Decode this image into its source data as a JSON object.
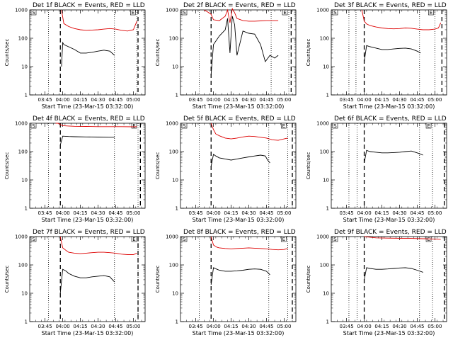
{
  "panel_layout": {
    "cols": 3,
    "rows": 3
  },
  "panels": [
    {
      "title": "Det 1f BLACK = Events, RED = LLD",
      "xlabel": "Start Time (23-Mar-15 03:32:00)",
      "ylabel": "Counts/sec",
      "s_label": "S",
      "e_label": "E"
    },
    {
      "title": "Det 2f BLACK = Events, RED = LLD",
      "xlabel": "Start Time (23-Mar-15 03:32:00)",
      "ylabel": "Counts/sec",
      "s_label": "S",
      "e_label": "E"
    },
    {
      "title": "Det 3f BLACK = Events, RED = LLD",
      "xlabel": "Start Time (23-Mar-15 03:32:00)",
      "ylabel": "Counts/sec",
      "s_label": "S",
      "e_label": "E"
    },
    {
      "title": "Det 4f BLACK = Events, RED = LLD",
      "xlabel": "Start Time (23-Mar-15 03:32:00)",
      "ylabel": "Counts/sec",
      "s_label": "S",
      "e_label": "E"
    },
    {
      "title": "Det 5f BLACK = Events, RED = LLD",
      "xlabel": "Start Time (23-Mar-15 03:32:00)",
      "ylabel": "Counts/sec",
      "s_label": "S",
      "e_label": "E"
    },
    {
      "title": "Det 6f BLACK = Events, RED = LLD",
      "xlabel": "Start Time (23-Mar-15 03:32:00)",
      "ylabel": "Counts/sec",
      "s_label": "S",
      "e_label": "E"
    },
    {
      "title": "Det 7f BLACK = Events, RED = LLD",
      "xlabel": "Start Time (23-Mar-15 03:32:00)",
      "ylabel": "Counts/sec",
      "s_label": "S",
      "e_label": "E"
    },
    {
      "title": "Det 8f BLACK = Events, RED = LLD",
      "xlabel": "Start Time (23-Mar-15 03:32:00)",
      "ylabel": "Counts/sec",
      "s_label": "S",
      "e_label": "E"
    },
    {
      "title": "Det 9f BLACK = Events, RED = LLD",
      "xlabel": "Start Time (23-Mar-15 03:32:00)",
      "ylabel": "Counts/sec",
      "s_label": "S",
      "e_label": "E"
    }
  ],
  "colors": {
    "events": "#000000",
    "lld": "#dd0000",
    "axes": "#000000"
  },
  "chart_data": [
    {
      "type": "line",
      "x_scale": "time",
      "y_scale": "log",
      "ylim": [
        1,
        1000
      ],
      "xlim": [
        "03:32",
        "05:10"
      ],
      "xticks": [
        "03:45",
        "04:00",
        "04:15",
        "04:30",
        "04:45",
        "05:00"
      ],
      "yticks": [
        "1",
        "10",
        "100",
        "1000"
      ],
      "markers": {
        "dotted": [
          "03:48",
          "04:44",
          "05:03"
        ],
        "dashed": [
          "03:58",
          "05:04"
        ]
      },
      "series": [
        {
          "name": "LLD",
          "x": [
            "03:59",
            "04:01",
            "04:05",
            "04:10",
            "04:15",
            "04:20",
            "04:25",
            "04:30",
            "04:35",
            "04:40",
            "04:45",
            "04:50",
            "04:55",
            "05:00",
            "05:03"
          ],
          "y": [
            1000,
            330,
            260,
            220,
            200,
            190,
            195,
            200,
            210,
            220,
            210,
            190,
            180,
            200,
            400
          ]
        },
        {
          "name": "Events",
          "x": [
            "03:59",
            "04:00",
            "04:01",
            "04:05",
            "04:10",
            "04:15",
            "04:20",
            "04:25",
            "04:30",
            "04:35",
            "04:40",
            "04:44"
          ],
          "y": [
            10,
            70,
            60,
            50,
            40,
            30,
            30,
            32,
            35,
            38,
            35,
            25
          ]
        }
      ]
    },
    {
      "type": "line",
      "x_scale": "time",
      "y_scale": "log",
      "ylim": [
        1,
        1000
      ],
      "xlim": [
        "03:32",
        "05:10"
      ],
      "xticks": [
        "03:45",
        "04:00",
        "04:15",
        "04:30",
        "04:45",
        "05:00"
      ],
      "yticks": [
        "1",
        "10",
        "100",
        "1000"
      ],
      "markers": {
        "dotted": [
          "03:48",
          "04:49",
          "05:04"
        ],
        "dashed": [
          "03:58",
          "05:06"
        ]
      },
      "series": [
        {
          "name": "LLD",
          "x": [
            "03:52",
            "03:54",
            "03:56",
            "03:58",
            "04:00",
            "04:05",
            "04:10",
            "04:12",
            "04:14",
            "04:16",
            "04:18",
            "04:20",
            "04:25",
            "04:30",
            "04:35",
            "04:40",
            "04:45",
            "04:50",
            "04:55"
          ],
          "y": [
            1000,
            900,
            800,
            700,
            450,
            420,
            600,
            1000,
            350,
            1100,
            800,
            500,
            420,
            400,
            400,
            410,
            420,
            420,
            420
          ]
        },
        {
          "name": "Events",
          "x": [
            "03:58",
            "04:00",
            "04:05",
            "04:10",
            "04:12",
            "04:14",
            "04:16",
            "04:18",
            "04:20",
            "04:25",
            "04:30",
            "04:35",
            "04:40",
            "04:44",
            "04:48",
            "04:52",
            "04:55"
          ],
          "y": [
            5,
            60,
            120,
            200,
            500,
            30,
            600,
            300,
            25,
            180,
            150,
            140,
            60,
            15,
            25,
            20,
            25
          ]
        }
      ]
    },
    {
      "type": "line",
      "x_scale": "time",
      "y_scale": "log",
      "ylim": [
        1,
        1000
      ],
      "xlim": [
        "03:32",
        "05:10"
      ],
      "xticks": [
        "03:45",
        "04:00",
        "04:15",
        "04:30",
        "04:45",
        "05:00"
      ],
      "yticks": [
        "1",
        "10",
        "100",
        "1000"
      ],
      "markers": {
        "dotted": [
          "03:47",
          "03:53",
          "04:47",
          "05:00"
        ],
        "dashed": [
          "04:00",
          "05:06"
        ]
      },
      "series": [
        {
          "name": "LLD",
          "x": [
            "03:58",
            "04:00",
            "04:02",
            "04:05",
            "04:10",
            "04:15",
            "04:20",
            "04:25",
            "04:30",
            "04:35",
            "04:40",
            "04:45",
            "04:50",
            "04:55",
            "05:00",
            "05:03",
            "05:05"
          ],
          "y": [
            1000,
            400,
            320,
            280,
            250,
            230,
            220,
            215,
            220,
            230,
            225,
            210,
            200,
            200,
            210,
            230,
            350
          ]
        },
        {
          "name": "Events",
          "x": [
            "04:00",
            "04:02",
            "04:05",
            "04:10",
            "04:15",
            "04:20",
            "04:25",
            "04:30",
            "04:35",
            "04:40",
            "04:45",
            "04:48"
          ],
          "y": [
            15,
            55,
            50,
            45,
            40,
            40,
            42,
            44,
            45,
            42,
            35,
            30
          ]
        }
      ]
    },
    {
      "type": "line",
      "x_scale": "time",
      "y_scale": "log",
      "ylim": [
        1,
        1000
      ],
      "xlim": [
        "03:32",
        "05:10"
      ],
      "xticks": [
        "03:45",
        "04:00",
        "04:15",
        "04:30",
        "04:45",
        "05:00"
      ],
      "yticks": [
        "1",
        "10",
        "100",
        "1000"
      ],
      "markers": {
        "dotted": [
          "03:48",
          "04:44",
          "05:04"
        ],
        "dashed": [
          "03:58",
          "05:06"
        ]
      },
      "series": [
        {
          "name": "LLD",
          "x": [
            "03:54",
            "03:56",
            "03:58",
            "04:00",
            "04:05",
            "04:10",
            "04:20",
            "04:30",
            "04:40",
            "04:50",
            "05:00",
            "05:03"
          ],
          "y": [
            1000,
            1000,
            900,
            820,
            800,
            780,
            770,
            760,
            760,
            760,
            750,
            760
          ]
        },
        {
          "name": "Events",
          "x": [
            "03:58",
            "04:00",
            "04:05",
            "04:10",
            "04:20",
            "04:30",
            "04:40",
            "04:44"
          ],
          "y": [
            170,
            350,
            340,
            335,
            330,
            325,
            320,
            320
          ]
        }
      ]
    },
    {
      "type": "line",
      "x_scale": "time",
      "y_scale": "log",
      "ylim": [
        1,
        1000
      ],
      "xlim": [
        "03:32",
        "05:10"
      ],
      "xticks": [
        "03:45",
        "04:00",
        "04:15",
        "04:30",
        "04:45",
        "05:00"
      ],
      "yticks": [
        "1",
        "10",
        "100",
        "1000"
      ],
      "markers": {
        "dotted": [
          "03:48",
          "04:47",
          "05:03"
        ],
        "dashed": [
          "03:58",
          "05:07"
        ]
      },
      "series": [
        {
          "name": "LLD",
          "x": [
            "03:58",
            "04:00",
            "04:02",
            "04:05",
            "04:10",
            "04:15",
            "04:20",
            "04:25",
            "04:30",
            "04:35",
            "04:40",
            "04:45",
            "04:50",
            "04:55",
            "05:00",
            "05:03"
          ],
          "y": [
            1000,
            600,
            420,
            360,
            300,
            280,
            300,
            330,
            350,
            340,
            320,
            300,
            260,
            250,
            280,
            300
          ]
        },
        {
          "name": "Events",
          "x": [
            "03:58",
            "04:00",
            "04:02",
            "04:05",
            "04:10",
            "04:15",
            "04:20",
            "04:25",
            "04:30",
            "04:35",
            "04:40",
            "04:44",
            "04:46",
            "04:48"
          ],
          "y": [
            30,
            80,
            70,
            60,
            55,
            50,
            55,
            60,
            65,
            70,
            75,
            70,
            50,
            40
          ]
        }
      ]
    },
    {
      "type": "line",
      "x_scale": "time",
      "y_scale": "log",
      "ylim": [
        1,
        1000
      ],
      "xlim": [
        "03:32",
        "05:10"
      ],
      "xticks": [
        "03:45",
        "04:00",
        "04:15",
        "04:30",
        "04:45",
        "05:00"
      ],
      "yticks": [
        "1",
        "10",
        "100",
        "1000"
      ],
      "markers": {
        "dotted": [
          "03:47",
          "03:54",
          "04:47",
          "04:58"
        ],
        "dashed": [
          "04:00",
          "05:08"
        ]
      },
      "series": [
        {
          "name": "Events",
          "x": [
            "04:00",
            "04:02",
            "04:05",
            "04:10",
            "04:15",
            "04:20",
            "04:25",
            "04:30",
            "04:35",
            "04:40",
            "04:45",
            "04:50"
          ],
          "y": [
            40,
            110,
            100,
            95,
            90,
            90,
            92,
            95,
            100,
            105,
            90,
            75
          ]
        }
      ]
    },
    {
      "type": "line",
      "x_scale": "time",
      "y_scale": "log",
      "ylim": [
        1,
        1000
      ],
      "xlim": [
        "03:32",
        "05:10"
      ],
      "xticks": [
        "03:45",
        "04:00",
        "04:15",
        "04:30",
        "04:45",
        "05:00"
      ],
      "yticks": [
        "1",
        "10",
        "100",
        "1000"
      ],
      "markers": {
        "dotted": [
          "03:48",
          "04:44",
          "05:04"
        ],
        "dashed": [
          "03:58",
          "05:04"
        ]
      },
      "series": [
        {
          "name": "LLD",
          "x": [
            "03:58",
            "04:00",
            "04:03",
            "04:05",
            "04:10",
            "04:15",
            "04:20",
            "04:25",
            "04:30",
            "04:35",
            "04:40",
            "04:45",
            "04:50",
            "04:55",
            "05:00",
            "05:03"
          ],
          "y": [
            1000,
            400,
            320,
            280,
            260,
            250,
            260,
            270,
            280,
            280,
            270,
            260,
            240,
            230,
            230,
            260
          ]
        },
        {
          "name": "Events",
          "x": [
            "03:58",
            "04:00",
            "04:03",
            "04:05",
            "04:10",
            "04:15",
            "04:20",
            "04:25",
            "04:30",
            "04:35",
            "04:40",
            "04:44"
          ],
          "y": [
            10,
            70,
            60,
            50,
            40,
            35,
            35,
            38,
            40,
            42,
            38,
            25
          ]
        }
      ]
    },
    {
      "type": "line",
      "x_scale": "time",
      "y_scale": "log",
      "ylim": [
        1,
        1000
      ],
      "xlim": [
        "03:32",
        "05:10"
      ],
      "xticks": [
        "03:45",
        "04:00",
        "04:15",
        "04:30",
        "04:45",
        "05:00"
      ],
      "yticks": [
        "1",
        "10",
        "100",
        "1000"
      ],
      "markers": {
        "dotted": [
          "03:48",
          "04:47",
          "05:03"
        ],
        "dashed": [
          "03:58",
          "05:07"
        ]
      },
      "series": [
        {
          "name": "LLD",
          "x": [
            "03:58",
            "04:00",
            "04:03",
            "04:05",
            "04:10",
            "04:15",
            "04:20",
            "04:25",
            "04:30",
            "04:35",
            "04:40",
            "04:45",
            "04:50",
            "04:55",
            "05:00",
            "05:03"
          ],
          "y": [
            1000,
            500,
            420,
            400,
            380,
            370,
            380,
            390,
            400,
            390,
            380,
            370,
            350,
            340,
            350,
            380
          ]
        },
        {
          "name": "Events",
          "x": [
            "03:58",
            "04:00",
            "04:03",
            "04:05",
            "04:10",
            "04:15",
            "04:20",
            "04:25",
            "04:30",
            "04:35",
            "04:40",
            "04:45",
            "04:48"
          ],
          "y": [
            20,
            80,
            70,
            65,
            60,
            60,
            62,
            65,
            70,
            72,
            70,
            60,
            45
          ]
        }
      ]
    },
    {
      "type": "line",
      "x_scale": "time",
      "y_scale": "log",
      "ylim": [
        1,
        1000
      ],
      "xlim": [
        "03:32",
        "05:10"
      ],
      "xticks": [
        "03:45",
        "04:00",
        "04:15",
        "04:30",
        "04:45",
        "05:00"
      ],
      "yticks": [
        "1",
        "10",
        "100",
        "1000"
      ],
      "markers": {
        "dotted": [
          "03:47",
          "03:54",
          "04:47",
          "04:58"
        ],
        "dashed": [
          "04:00",
          "05:08"
        ]
      },
      "series": [
        {
          "name": "LLD",
          "x": [
            "04:00",
            "04:05",
            "04:10",
            "04:20",
            "04:30",
            "04:40",
            "04:50",
            "05:00",
            "05:05"
          ],
          "y": [
            1000,
            950,
            900,
            880,
            870,
            860,
            840,
            820,
            800
          ]
        },
        {
          "name": "Events",
          "x": [
            "04:00",
            "04:02",
            "04:05",
            "04:10",
            "04:15",
            "04:20",
            "04:25",
            "04:30",
            "04:35",
            "04:40",
            "04:45",
            "04:50"
          ],
          "y": [
            30,
            80,
            75,
            70,
            70,
            72,
            75,
            78,
            80,
            75,
            65,
            55
          ]
        }
      ]
    }
  ]
}
